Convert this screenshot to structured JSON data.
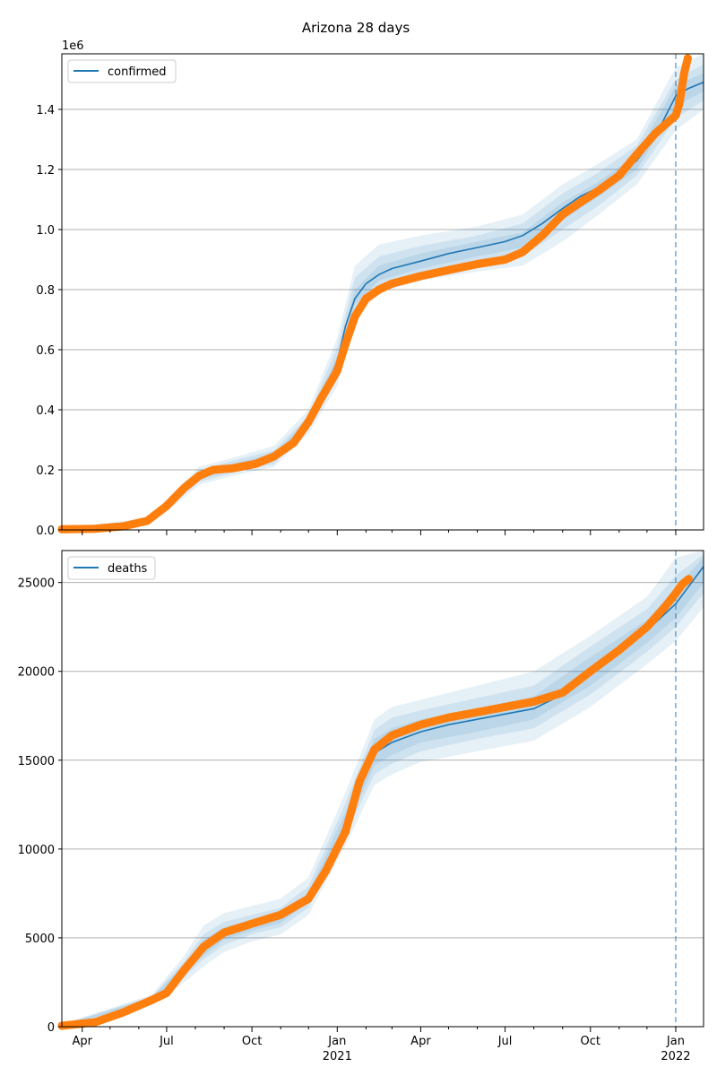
{
  "chart_data": [
    {
      "type": "line",
      "title": "Arizona 28 days",
      "ylabel": "",
      "xlabel": "",
      "y_offset_label": "1e6",
      "ylim": [
        0,
        1.585
      ],
      "yticks": [
        0,
        0.2,
        0.4,
        0.6,
        0.8,
        1.0,
        1.2,
        1.4
      ],
      "ytick_labels": [
        "0.0",
        "0.2",
        "0.4",
        "0.6",
        "0.8",
        "1.0",
        "1.2",
        "1.4"
      ],
      "xlim": [
        "2020-03-10",
        "2022-01-31"
      ],
      "forecast_start": "2022-01-01",
      "grid": "y",
      "legend": {
        "position": "top-left",
        "entries": [
          "confirmed"
        ]
      },
      "colors": {
        "model": "#1f77b4",
        "observed": "#ff7f0e",
        "band": "#1f77b4"
      },
      "series": [
        {
          "name": "confirmed",
          "kind": "model-median",
          "x": [
            "2020-03-10",
            "2020-04-15",
            "2020-05-15",
            "2020-06-10",
            "2020-07-01",
            "2020-07-20",
            "2020-08-05",
            "2020-08-20",
            "2020-09-10",
            "2020-10-05",
            "2020-10-25",
            "2020-11-15",
            "2020-12-01",
            "2020-12-15",
            "2021-01-01",
            "2021-01-10",
            "2021-01-20",
            "2021-02-01",
            "2021-02-15",
            "2021-03-01",
            "2021-04-01",
            "2021-05-01",
            "2021-06-01",
            "2021-07-01",
            "2021-07-20",
            "2021-08-10",
            "2021-09-01",
            "2021-09-20",
            "2021-10-10",
            "2021-11-01",
            "2021-11-20",
            "2021-12-10",
            "2022-01-01",
            "2022-01-15",
            "2022-01-31"
          ],
          "y": [
            0.002,
            0.004,
            0.012,
            0.03,
            0.08,
            0.14,
            0.18,
            0.2,
            0.21,
            0.225,
            0.245,
            0.29,
            0.36,
            0.44,
            0.56,
            0.68,
            0.77,
            0.82,
            0.85,
            0.87,
            0.895,
            0.92,
            0.94,
            0.96,
            0.98,
            1.02,
            1.07,
            1.11,
            1.14,
            1.18,
            1.23,
            1.31,
            1.445,
            1.47,
            1.49
          ]
        },
        {
          "name": "",
          "kind": "observed",
          "x": [
            "2020-03-10",
            "2020-04-15",
            "2020-05-15",
            "2020-06-10",
            "2020-07-01",
            "2020-07-20",
            "2020-08-05",
            "2020-08-20",
            "2020-09-10",
            "2020-10-05",
            "2020-10-25",
            "2020-11-15",
            "2020-12-01",
            "2020-12-15",
            "2021-01-01",
            "2021-01-10",
            "2021-01-20",
            "2021-02-01",
            "2021-02-15",
            "2021-03-01",
            "2021-04-01",
            "2021-05-01",
            "2021-06-01",
            "2021-07-01",
            "2021-07-20",
            "2021-08-10",
            "2021-09-01",
            "2021-09-20",
            "2021-10-10",
            "2021-11-01",
            "2021-11-20",
            "2021-12-10",
            "2022-01-01",
            "2022-01-05",
            "2022-01-10",
            "2022-01-14"
          ],
          "y": [
            0.002,
            0.004,
            0.012,
            0.03,
            0.08,
            0.14,
            0.18,
            0.2,
            0.205,
            0.22,
            0.245,
            0.29,
            0.36,
            0.44,
            0.53,
            0.62,
            0.71,
            0.77,
            0.8,
            0.82,
            0.845,
            0.865,
            0.885,
            0.9,
            0.925,
            0.98,
            1.05,
            1.09,
            1.13,
            1.18,
            1.25,
            1.32,
            1.38,
            1.42,
            1.52,
            1.57
          ]
        }
      ],
      "bands": [
        {
          "x": [
            "2020-03-10",
            "2020-06-10",
            "2020-07-01",
            "2020-08-05",
            "2020-09-10",
            "2020-10-25",
            "2020-12-01",
            "2021-01-01",
            "2021-01-20",
            "2021-02-15",
            "2021-04-01",
            "2021-06-01",
            "2021-07-20",
            "2021-09-01",
            "2021-10-10",
            "2021-11-20",
            "2022-01-01",
            "2022-01-31"
          ],
          "outer_low": [
            0,
            0.02,
            0.06,
            0.15,
            0.18,
            0.21,
            0.32,
            0.48,
            0.7,
            0.79,
            0.83,
            0.86,
            0.88,
            0.96,
            1.05,
            1.15,
            1.33,
            1.4
          ],
          "outer_high": [
            0.005,
            0.04,
            0.1,
            0.21,
            0.24,
            0.28,
            0.4,
            0.64,
            0.88,
            0.95,
            0.98,
            1.01,
            1.05,
            1.15,
            1.22,
            1.3,
            1.54,
            1.585
          ],
          "mid_low": [
            0.001,
            0.025,
            0.07,
            0.16,
            0.19,
            0.22,
            0.34,
            0.5,
            0.73,
            0.81,
            0.85,
            0.885,
            0.91,
            1.0,
            1.08,
            1.18,
            1.37,
            1.43
          ],
          "mid_high": [
            0.004,
            0.035,
            0.09,
            0.2,
            0.23,
            0.265,
            0.38,
            0.61,
            0.84,
            0.91,
            0.945,
            0.98,
            1.02,
            1.12,
            1.19,
            1.28,
            1.5,
            1.55
          ],
          "inner_low": [
            0.0015,
            0.028,
            0.075,
            0.17,
            0.2,
            0.23,
            0.35,
            0.53,
            0.75,
            0.83,
            0.87,
            0.91,
            0.94,
            1.03,
            1.11,
            1.2,
            1.41,
            1.46
          ],
          "inner_high": [
            0.003,
            0.032,
            0.085,
            0.19,
            0.22,
            0.255,
            0.37,
            0.58,
            0.8,
            0.88,
            0.92,
            0.96,
            0.99,
            1.09,
            1.16,
            1.25,
            1.48,
            1.52
          ]
        }
      ]
    },
    {
      "type": "line",
      "title": "",
      "ylabel": "",
      "xlabel": "",
      "ylim": [
        0,
        26800
      ],
      "yticks": [
        0,
        5000,
        10000,
        15000,
        20000,
        25000
      ],
      "ytick_labels": [
        "0",
        "5000",
        "10000",
        "15000",
        "20000",
        "25000"
      ],
      "xlim": [
        "2020-03-10",
        "2022-01-31"
      ],
      "forecast_start": "2022-01-01",
      "grid": "y",
      "legend": {
        "position": "top-left",
        "entries": [
          "deaths"
        ]
      },
      "xtick_labels": [
        {
          "date": "2020-04-01",
          "label": "Apr",
          "sub": ""
        },
        {
          "date": "2020-07-01",
          "label": "Jul",
          "sub": ""
        },
        {
          "date": "2020-10-01",
          "label": "Oct",
          "sub": ""
        },
        {
          "date": "2021-01-01",
          "label": "Jan",
          "sub": "2021"
        },
        {
          "date": "2021-04-01",
          "label": "Apr",
          "sub": ""
        },
        {
          "date": "2021-07-01",
          "label": "Jul",
          "sub": ""
        },
        {
          "date": "2021-10-01",
          "label": "Oct",
          "sub": ""
        },
        {
          "date": "2022-01-01",
          "label": "Jan",
          "sub": "2022"
        }
      ],
      "series": [
        {
          "name": "deaths",
          "kind": "model-median",
          "x": [
            "2020-03-10",
            "2020-04-15",
            "2020-05-15",
            "2020-06-15",
            "2020-07-01",
            "2020-07-20",
            "2020-08-10",
            "2020-09-01",
            "2020-10-01",
            "2020-11-01",
            "2020-12-01",
            "2020-12-20",
            "2021-01-10",
            "2021-01-25",
            "2021-02-10",
            "2021-03-01",
            "2021-04-01",
            "2021-05-01",
            "2021-06-01",
            "2021-07-01",
            "2021-08-01",
            "2021-09-01",
            "2021-10-01",
            "2021-11-01",
            "2021-12-01",
            "2022-01-01",
            "2022-01-31"
          ],
          "y": [
            50,
            250,
            800,
            1500,
            1900,
            3200,
            4400,
            5200,
            5700,
            6100,
            7200,
            8800,
            11500,
            14000,
            15400,
            16000,
            16600,
            17000,
            17300,
            17600,
            17900,
            18700,
            20000,
            21000,
            22300,
            23800,
            25900
          ]
        },
        {
          "name": "",
          "kind": "observed",
          "x": [
            "2020-03-10",
            "2020-04-15",
            "2020-05-15",
            "2020-06-15",
            "2020-07-01",
            "2020-07-20",
            "2020-08-10",
            "2020-09-01",
            "2020-10-01",
            "2020-11-01",
            "2020-12-01",
            "2020-12-20",
            "2021-01-10",
            "2021-01-25",
            "2021-02-10",
            "2021-03-01",
            "2021-04-01",
            "2021-05-01",
            "2021-06-01",
            "2021-07-01",
            "2021-08-01",
            "2021-09-01",
            "2021-10-01",
            "2021-11-01",
            "2021-12-01",
            "2021-12-20",
            "2022-01-01",
            "2022-01-08",
            "2022-01-15"
          ],
          "y": [
            50,
            250,
            800,
            1500,
            1900,
            3200,
            4500,
            5300,
            5800,
            6300,
            7200,
            8800,
            11000,
            13800,
            15600,
            16400,
            17000,
            17400,
            17700,
            18000,
            18300,
            18800,
            20000,
            21200,
            22500,
            23600,
            24400,
            24900,
            25200
          ]
        }
      ],
      "bands": [
        {
          "x": [
            "2020-03-10",
            "2020-06-15",
            "2020-07-20",
            "2020-08-10",
            "2020-09-01",
            "2020-10-01",
            "2020-11-01",
            "2020-12-01",
            "2021-01-10",
            "2021-02-10",
            "2021-03-01",
            "2021-04-01",
            "2021-06-01",
            "2021-08-01",
            "2021-10-01",
            "2021-12-01",
            "2022-01-01",
            "2022-01-31"
          ],
          "outer_low": [
            0,
            1200,
            2500,
            3400,
            4200,
            4800,
            5200,
            6300,
            10200,
            13600,
            14200,
            14900,
            15500,
            16100,
            18000,
            20400,
            21700,
            23600
          ],
          "outer_high": [
            150,
            1800,
            4000,
            5700,
            6400,
            6800,
            7200,
            8400,
            13200,
            17300,
            18000,
            18400,
            19200,
            20000,
            22000,
            24200,
            26400,
            26800
          ],
          "mid_low": [
            20,
            1300,
            2800,
            3800,
            4600,
            5200,
            5600,
            6700,
            10800,
            14200,
            14800,
            15500,
            16200,
            16800,
            18700,
            21100,
            22500,
            24400
          ],
          "mid_high": [
            120,
            1700,
            3700,
            5200,
            5900,
            6300,
            6700,
            7900,
            12600,
            16700,
            17400,
            17800,
            18500,
            19200,
            21400,
            23500,
            25400,
            26600
          ],
          "inner_low": [
            30,
            1400,
            3000,
            4000,
            4900,
            5400,
            5850,
            7000,
            11100,
            14700,
            15300,
            16000,
            16600,
            17300,
            19200,
            21600,
            23000,
            25000
          ],
          "inner_high": [
            90,
            1650,
            3500,
            4900,
            5600,
            6000,
            6400,
            7500,
            12100,
            16200,
            16800,
            17300,
            17900,
            18600,
            20800,
            22900,
            24700,
            26400
          ]
        }
      ]
    }
  ]
}
